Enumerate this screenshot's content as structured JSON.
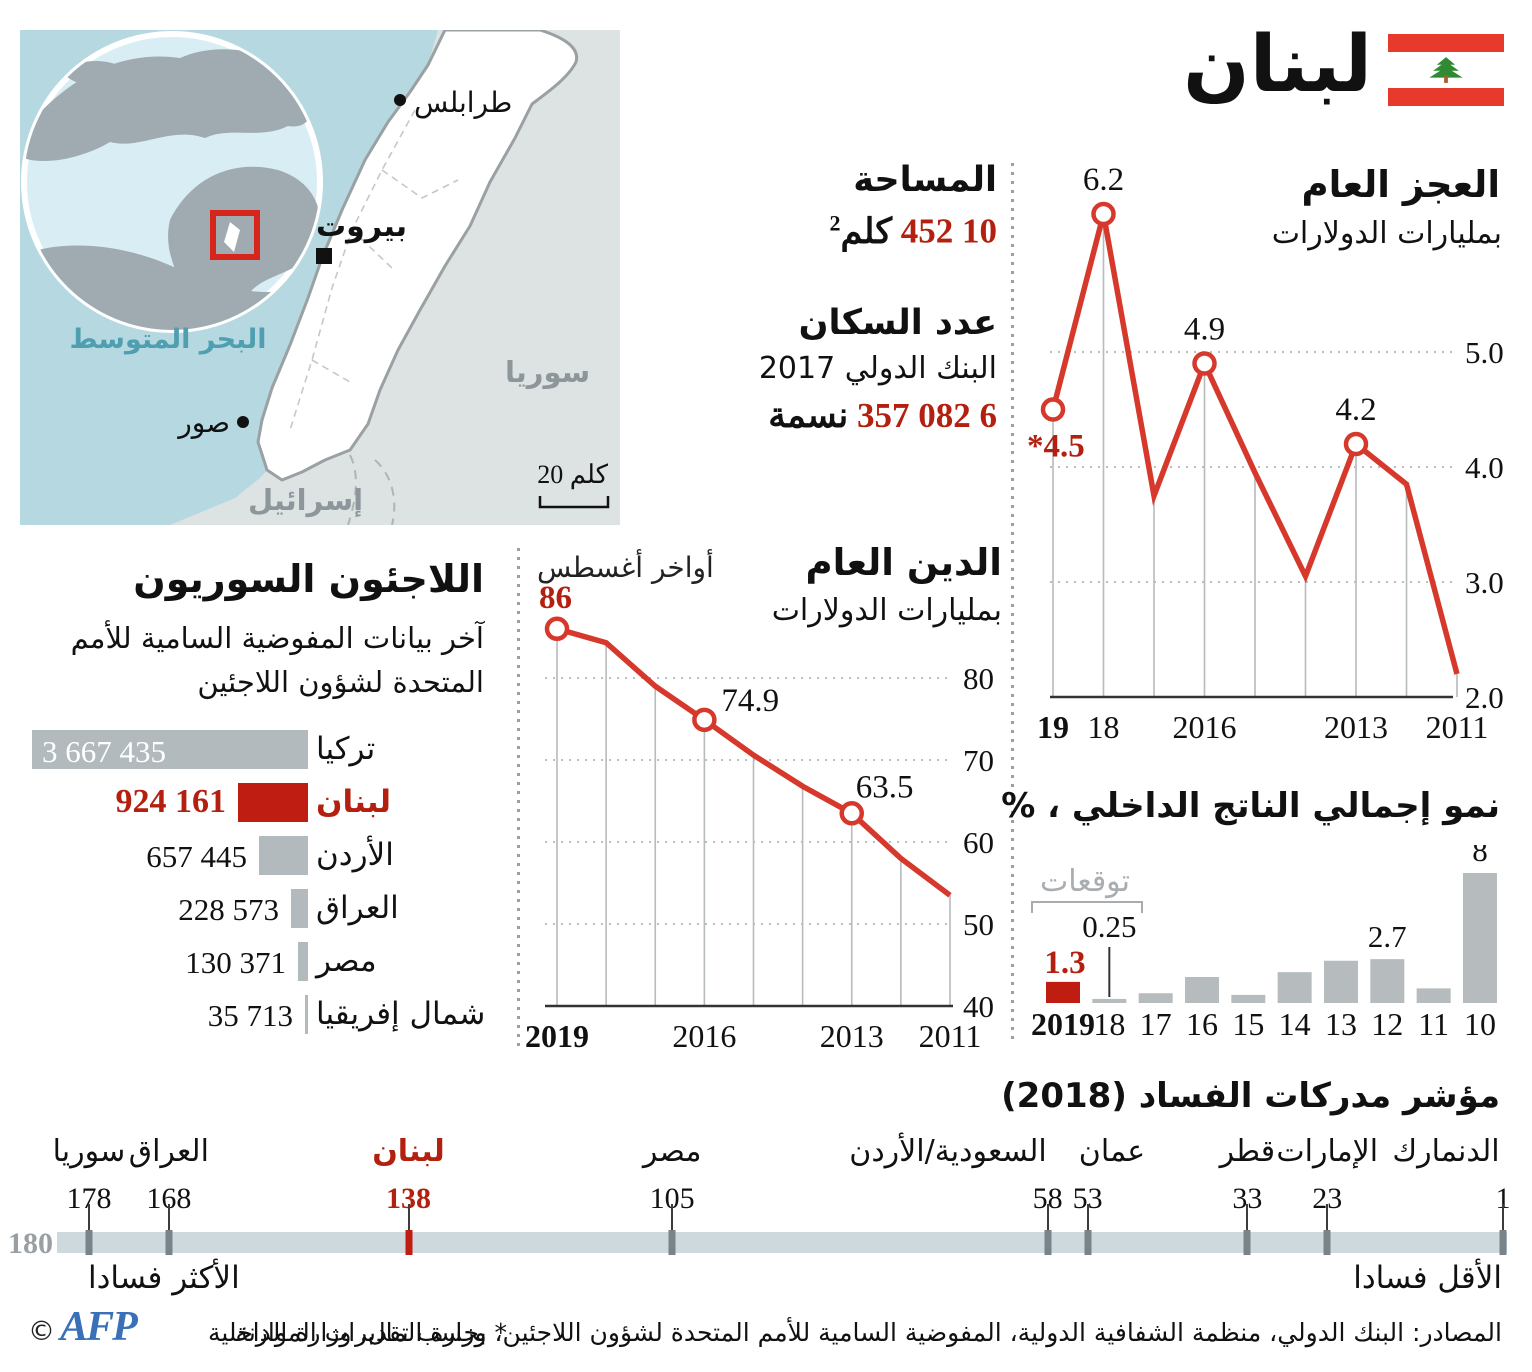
{
  "title": "لبنان",
  "map": {
    "sea": "البحر المتوسط",
    "cities": [
      {
        "name": "طرابلس"
      },
      {
        "name": "بيروت",
        "capital": true
      },
      {
        "name": "صور"
      }
    ],
    "neighbors": [
      "سوريا",
      "إسرائيل"
    ],
    "scale": "20 كلم"
  },
  "facts": {
    "area_label": "المساحة",
    "area_value": "10 452",
    "area_unit": "كلم",
    "area_sup": "2",
    "population_label": "عدد السكان",
    "population_source": "البنك الدولي 2017",
    "population_value": "6 082 357",
    "population_unit": "نسمة"
  },
  "chart_data": [
    {
      "id": "deficit",
      "type": "line",
      "title": "العجز العام",
      "subtitle": "بمليارات الدولارات",
      "x": [
        2011,
        2012,
        2013,
        2014,
        2015,
        2016,
        2017,
        2018,
        2019
      ],
      "values": [
        2.2,
        3.85,
        4.2,
        3.05,
        3.95,
        4.9,
        3.75,
        6.2,
        4.5
      ],
      "ylim": [
        2.0,
        6.5
      ],
      "yticks": [
        {
          "v": 2,
          "t": "2.0"
        },
        {
          "v": 3,
          "t": "3.0"
        },
        {
          "v": 4,
          "t": "4.0"
        },
        {
          "v": 5,
          "t": "5.0"
        }
      ],
      "xticks": [
        {
          "year": 2019,
          "t": "19",
          "bold": true
        },
        {
          "year": 2018,
          "t": "18"
        },
        {
          "year": 2016,
          "t": "2016"
        },
        {
          "year": 2013,
          "t": "2013"
        },
        {
          "year": 2011,
          "t": "2011"
        }
      ],
      "markers": [
        2019,
        2018,
        2016,
        2013
      ],
      "annotations": [
        {
          "year": 2018,
          "text": "6.2"
        },
        {
          "year": 2016,
          "text": "4.9"
        },
        {
          "year": 2013,
          "text": "4.2"
        },
        {
          "year": 2019,
          "text": "*4.5",
          "red": true
        }
      ],
      "legend": "x axis runs right-to-left, 2011 at right"
    },
    {
      "id": "debt",
      "type": "line",
      "title": "الدين العام",
      "subtitle": "بمليارات الدولارات",
      "note": "أواخر أغسطس",
      "x": [
        2011,
        2012,
        2013,
        2014,
        2015,
        2016,
        2017,
        2018,
        2019
      ],
      "values": [
        53.5,
        58,
        63.5,
        66.8,
        70.6,
        74.9,
        79,
        84.3,
        86
      ],
      "ylim": [
        40,
        90
      ],
      "yticks": [
        {
          "v": 40,
          "t": "40"
        },
        {
          "v": 50,
          "t": "50"
        },
        {
          "v": 60,
          "t": "60"
        },
        {
          "v": 70,
          "t": "70"
        },
        {
          "v": 80,
          "t": "80"
        }
      ],
      "xticks": [
        {
          "year": 2019,
          "t": "2019",
          "bold": true
        },
        {
          "year": 2016,
          "t": "2016"
        },
        {
          "year": 2013,
          "t": "2013"
        },
        {
          "year": 2011,
          "t": "2011"
        }
      ],
      "markers": [
        2019,
        2016,
        2013
      ],
      "annotations": [
        {
          "year": 2019,
          "text": "86",
          "red": true
        },
        {
          "year": 2016,
          "text": "74.9"
        },
        {
          "year": 2013,
          "text": "63.5"
        }
      ]
    },
    {
      "id": "gdp",
      "type": "bar",
      "title": "نمو إجمالي الناتج الداخلي ، %",
      "forecast_label": "توقعات",
      "categories": [
        "2010",
        "2011",
        "2012",
        "2013",
        "2014",
        "2015",
        "2016",
        "2017",
        "2018",
        "2019"
      ],
      "values": [
        8,
        0.9,
        2.7,
        2.6,
        1.9,
        0.5,
        1.6,
        0.6,
        0.25,
        1.3
      ],
      "red_year": "2019",
      "xticks": [
        {
          "year": 2019,
          "t": "2019",
          "bold": true
        },
        {
          "year": 2018,
          "t": "18"
        },
        {
          "year": 2017,
          "t": "17"
        },
        {
          "year": 2016,
          "t": "16"
        },
        {
          "year": 2015,
          "t": "15"
        },
        {
          "year": 2014,
          "t": "14"
        },
        {
          "year": 2013,
          "t": "13"
        },
        {
          "year": 2012,
          "t": "12"
        },
        {
          "year": 2011,
          "t": "11"
        },
        {
          "year": 2010,
          "t": "10"
        }
      ],
      "annotations": [
        {
          "year": 2010,
          "text": "8"
        },
        {
          "year": 2012,
          "text": "2.7"
        },
        {
          "year": 2018,
          "text": "0.25",
          "pointer": true
        },
        {
          "year": 2019,
          "text": "1.3",
          "red": true
        }
      ]
    },
    {
      "id": "refugees",
      "type": "bar",
      "title": "اللاجئون السوريون",
      "subtitle1": "آخر بيانات المفوضية السامية للأمم",
      "subtitle2": "المتحدة لشؤون اللاجئين",
      "rows": [
        {
          "name": "تركيا",
          "value": 3667435,
          "display": "3 667 435",
          "value_inside": true
        },
        {
          "name": "لبنان",
          "value": 924161,
          "display": "924 161",
          "red": true
        },
        {
          "name": "الأردن",
          "value": 657445,
          "display": "657 445"
        },
        {
          "name": "العراق",
          "value": 228573,
          "display": "228 573"
        },
        {
          "name": "مصر",
          "value": 130371,
          "display": "130 371"
        },
        {
          "name": "شمال إفريقيا",
          "value": 35713,
          "display": "35 713"
        }
      ]
    },
    {
      "id": "corruption",
      "type": "scale",
      "title": "مؤشر مدركات الفساد (2018)",
      "max_label": "180",
      "most_label": "الأكثر فسادا",
      "least_label": "الأقل فسادا",
      "range": [
        1,
        180
      ],
      "entries": [
        {
          "name": "الدنمارك",
          "rank": 1,
          "display": "1"
        },
        {
          "name": "الإمارات",
          "rank": 23,
          "display": "23"
        },
        {
          "name": "قطر",
          "rank": 33,
          "display": "33"
        },
        {
          "name": "عمان",
          "rank": 53,
          "display": "53"
        },
        {
          "name": "السعودية/الأردن",
          "rank": 58,
          "display": "58"
        },
        {
          "name": "مصر",
          "rank": 105,
          "display": "105"
        },
        {
          "name": "لبنان",
          "rank": 138,
          "display": "138",
          "red": true
        },
        {
          "name": "العراق",
          "rank": 168,
          "display": "168"
        },
        {
          "name": "سوريا",
          "rank": 178,
          "display": "178"
        }
      ]
    }
  ],
  "footer": {
    "sources": "المصادر: البنك الدولي، منظمة الشفافية الدولية، المفوضية السامية للأمم المتحدة لشؤون اللاجئين، وزارة المال، وزارة الداخلية",
    "note": "* بحسب تقديرات الموازنة",
    "copyright": "©",
    "agency": "AFP"
  },
  "colors": {
    "accent_red": "#d6392c",
    "dark_red": "#b3200f",
    "bar_gray": "#b3babd",
    "scale_bar": "#cdd9dd",
    "sea": "#b5d8e1",
    "land": "#dde2e3",
    "afp_blue": "#3a70b7"
  }
}
